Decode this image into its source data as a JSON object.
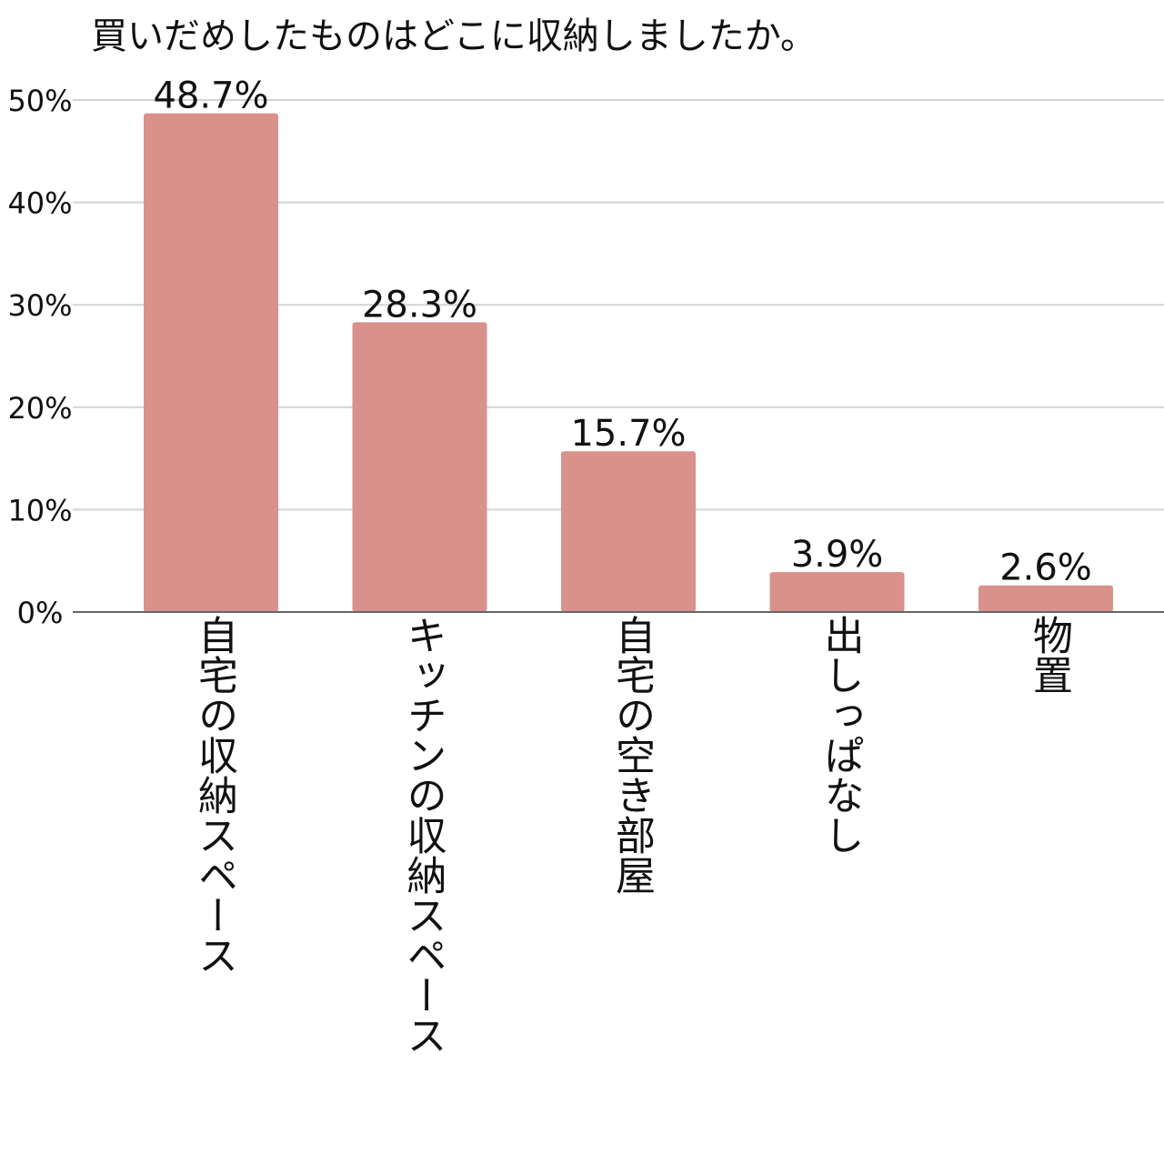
{
  "chart_data": {
    "type": "bar",
    "title": "買いだめしたものはどこに収納しましたか。",
    "categories": [
      "自宅の収納スペース",
      "キッチンの収納スペース",
      "自宅の空き部屋",
      "出しっぱなし",
      "物置"
    ],
    "values": [
      48.7,
      28.3,
      15.7,
      3.9,
      2.6
    ],
    "data_labels": [
      "48.7%",
      "28.3%",
      "15.7%",
      "3.9%",
      "2.6%"
    ],
    "xlabel": "",
    "ylabel": "",
    "ylim": [
      0,
      50
    ],
    "yticks": [
      0,
      10,
      20,
      30,
      40,
      50
    ],
    "ytick_labels": [
      "0%",
      "10%",
      "20%",
      "30%",
      "40%",
      "50%"
    ],
    "grid": true,
    "legend": "none",
    "colors": {
      "bar": "#d9918c",
      "grid": "#d4d4d4",
      "baseline": "#666666"
    }
  }
}
